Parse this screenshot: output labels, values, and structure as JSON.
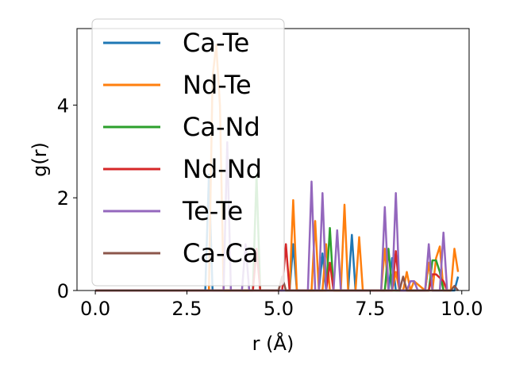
{
  "chart_data": {
    "type": "line",
    "title": "",
    "xlabel": "r (Å)",
    "ylabel": "g(r)",
    "xlim": [
      -0.5,
      10.2
    ],
    "ylim": [
      0,
      5.65
    ],
    "xticks": [
      0.0,
      2.5,
      5.0,
      7.5,
      10.0
    ],
    "xtick_labels": [
      "0.0",
      "2.5",
      "5.0",
      "7.5",
      "10.0"
    ],
    "yticks": [
      0,
      2,
      4
    ],
    "ytick_labels": [
      "0",
      "2",
      "4"
    ],
    "grid": false,
    "legend_position": "top-left",
    "series": [
      {
        "name": "Ca-Te",
        "color": "#1f77b4",
        "points": [
          [
            0.0,
            0
          ],
          [
            3.0,
            0
          ],
          [
            3.1,
            2.5
          ],
          [
            3.2,
            0
          ],
          [
            5.3,
            0
          ],
          [
            5.4,
            1.0
          ],
          [
            5.5,
            0
          ],
          [
            6.1,
            0
          ],
          [
            6.2,
            0.8
          ],
          [
            6.3,
            0
          ],
          [
            6.9,
            0
          ],
          [
            7.0,
            1.2
          ],
          [
            7.1,
            0
          ],
          [
            8.0,
            0
          ],
          [
            8.1,
            0.7
          ],
          [
            8.2,
            0
          ],
          [
            9.0,
            0
          ],
          [
            9.1,
            0.6
          ],
          [
            9.2,
            0
          ],
          [
            9.8,
            0
          ],
          [
            9.9,
            0.3
          ]
        ]
      },
      {
        "name": "Nd-Te",
        "color": "#ff7f0e",
        "points": [
          [
            0.0,
            0
          ],
          [
            3.1,
            0
          ],
          [
            3.2,
            4.6
          ],
          [
            3.3,
            5.3
          ],
          [
            3.4,
            4.0
          ],
          [
            3.5,
            0
          ],
          [
            5.3,
            0
          ],
          [
            5.4,
            1.95
          ],
          [
            5.5,
            0
          ],
          [
            5.9,
            0
          ],
          [
            6.0,
            1.5
          ],
          [
            6.1,
            0
          ],
          [
            6.2,
            0
          ],
          [
            6.3,
            1.0
          ],
          [
            6.4,
            0
          ],
          [
            6.7,
            0
          ],
          [
            6.8,
            1.85
          ],
          [
            6.9,
            0
          ],
          [
            7.1,
            0
          ],
          [
            7.2,
            1.15
          ],
          [
            7.3,
            0
          ],
          [
            7.8,
            0
          ],
          [
            7.9,
            0.9
          ],
          [
            8.0,
            0
          ],
          [
            8.1,
            0
          ],
          [
            8.2,
            0.4
          ],
          [
            8.3,
            0
          ],
          [
            8.4,
            0
          ],
          [
            8.5,
            0.4
          ],
          [
            8.6,
            0
          ],
          [
            8.7,
            0.2
          ],
          [
            9.0,
            0
          ],
          [
            9.1,
            0.6
          ],
          [
            9.2,
            0
          ],
          [
            9.3,
            0.7
          ],
          [
            9.4,
            0.95
          ],
          [
            9.5,
            0
          ],
          [
            9.7,
            0
          ],
          [
            9.8,
            0.9
          ],
          [
            9.9,
            0.4
          ]
        ]
      },
      {
        "name": "Ca-Nd",
        "color": "#2ca02c",
        "points": [
          [
            0.0,
            0
          ],
          [
            4.3,
            0
          ],
          [
            4.4,
            2.5
          ],
          [
            4.5,
            0
          ],
          [
            6.3,
            0
          ],
          [
            6.4,
            1.35
          ],
          [
            6.5,
            0
          ],
          [
            7.9,
            0
          ],
          [
            8.0,
            0.9
          ],
          [
            8.1,
            0
          ],
          [
            9.1,
            0
          ],
          [
            9.2,
            0.65
          ],
          [
            9.3,
            0.65
          ],
          [
            9.4,
            0.4
          ],
          [
            9.5,
            0
          ]
        ]
      },
      {
        "name": "Nd-Nd",
        "color": "#d62728",
        "points": [
          [
            0.0,
            0
          ],
          [
            4.3,
            0
          ],
          [
            4.4,
            0.9
          ],
          [
            4.5,
            0
          ],
          [
            5.1,
            0
          ],
          [
            5.2,
            1.0
          ],
          [
            5.3,
            0
          ],
          [
            6.3,
            0
          ],
          [
            6.4,
            0.6
          ],
          [
            6.5,
            0
          ],
          [
            8.1,
            0
          ],
          [
            8.2,
            0.85
          ],
          [
            8.3,
            0
          ],
          [
            9.1,
            0
          ],
          [
            9.2,
            0.35
          ],
          [
            9.3,
            0.35
          ],
          [
            9.5,
            0.2
          ],
          [
            9.6,
            0
          ]
        ]
      },
      {
        "name": "Te-Te",
        "color": "#9467bd",
        "points": [
          [
            0.0,
            0
          ],
          [
            3.5,
            0
          ],
          [
            3.6,
            3.2
          ],
          [
            3.7,
            0
          ],
          [
            4.0,
            0
          ],
          [
            4.1,
            1.0
          ],
          [
            4.2,
            0
          ],
          [
            5.8,
            0
          ],
          [
            5.9,
            2.35
          ],
          [
            6.0,
            0
          ],
          [
            6.1,
            0
          ],
          [
            6.2,
            2.1
          ],
          [
            6.3,
            0
          ],
          [
            6.5,
            0
          ],
          [
            6.6,
            1.3
          ],
          [
            6.7,
            0
          ],
          [
            7.8,
            0
          ],
          [
            7.9,
            1.8
          ],
          [
            8.0,
            0
          ],
          [
            8.1,
            0
          ],
          [
            8.2,
            2.1
          ],
          [
            8.3,
            0
          ],
          [
            8.5,
            0
          ],
          [
            8.6,
            0.2
          ],
          [
            8.7,
            0.2
          ],
          [
            8.8,
            0
          ],
          [
            9.0,
            0
          ],
          [
            9.1,
            1.0
          ],
          [
            9.2,
            0
          ],
          [
            9.4,
            0
          ],
          [
            9.5,
            1.25
          ],
          [
            9.6,
            0
          ]
        ]
      },
      {
        "name": "Ca-Ca",
        "color": "#8c564b",
        "points": [
          [
            0.0,
            0
          ],
          [
            5.0,
            0
          ],
          [
            5.1,
            0.3
          ],
          [
            5.2,
            0
          ],
          [
            8.3,
            0
          ],
          [
            8.4,
            0.3
          ],
          [
            8.5,
            0
          ],
          [
            9.7,
            0
          ],
          [
            9.8,
            0.1
          ],
          [
            9.9,
            0
          ]
        ]
      }
    ]
  }
}
